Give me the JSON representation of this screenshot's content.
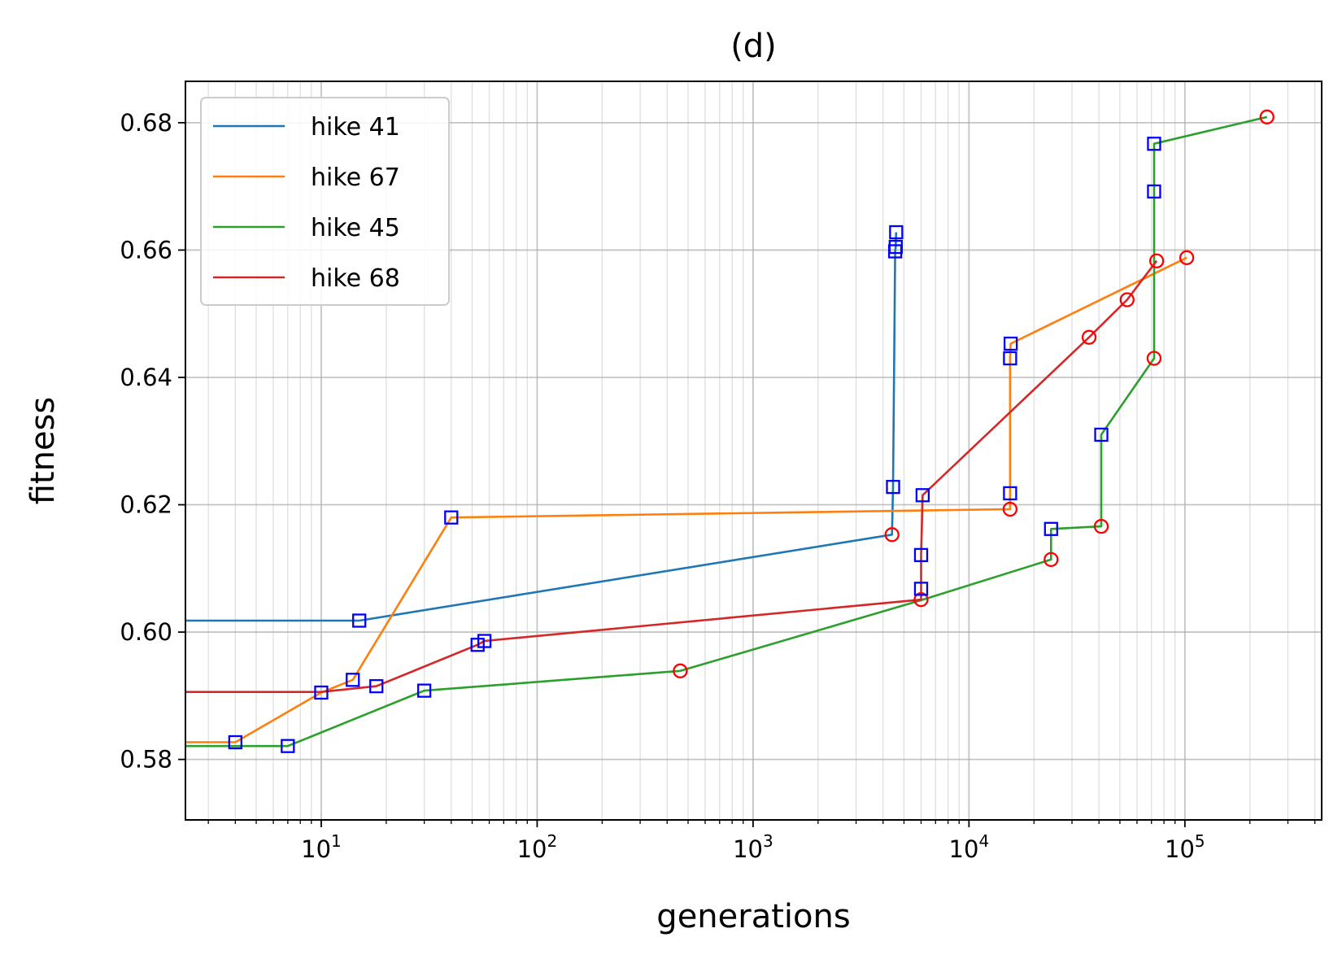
{
  "chart_data": {
    "type": "line",
    "title": "(d)",
    "xlabel": "generations",
    "ylabel": "fitness",
    "xscale": "log",
    "xlim": [
      2.35,
      430000
    ],
    "ylim": [
      0.5705,
      0.6865
    ],
    "x_ticks": [
      {
        "value": 10,
        "base": "10",
        "exp": "1"
      },
      {
        "value": 100,
        "base": "10",
        "exp": "2"
      },
      {
        "value": 1000,
        "base": "10",
        "exp": "3"
      },
      {
        "value": 10000,
        "base": "10",
        "exp": "4"
      },
      {
        "value": 100000,
        "base": "10",
        "exp": "5"
      }
    ],
    "y_ticks": [
      {
        "value": 0.58,
        "label": "0.58"
      },
      {
        "value": 0.6,
        "label": "0.60"
      },
      {
        "value": 0.62,
        "label": "0.62"
      },
      {
        "value": 0.64,
        "label": "0.64"
      },
      {
        "value": 0.66,
        "label": "0.66"
      },
      {
        "value": 0.68,
        "label": "0.68"
      }
    ],
    "grid": true,
    "minor_grid": true,
    "legend_position": "upper-left",
    "series": [
      {
        "name": "hike 41",
        "color": "#1f77b4",
        "points": [
          {
            "x": 2.35,
            "y": 0.6018,
            "m": ""
          },
          {
            "x": 15,
            "y": 0.6018,
            "m": "s"
          },
          {
            "x": 4400,
            "y": 0.6153,
            "m": "o"
          },
          {
            "x": 4450,
            "y": 0.6228,
            "m": "s"
          },
          {
            "x": 4550,
            "y": 0.6598,
            "m": "s"
          },
          {
            "x": 4580,
            "y": 0.6605,
            "m": "s"
          },
          {
            "x": 4600,
            "y": 0.6628,
            "m": "s"
          }
        ]
      },
      {
        "name": "hike 67",
        "color": "#ff7f0e",
        "points": [
          {
            "x": 2.35,
            "y": 0.5827,
            "m": ""
          },
          {
            "x": 4,
            "y": 0.5827,
            "m": "s"
          },
          {
            "x": 10,
            "y": 0.5905,
            "m": "s"
          },
          {
            "x": 14,
            "y": 0.5925,
            "m": "s"
          },
          {
            "x": 40,
            "y": 0.618,
            "m": "s"
          },
          {
            "x": 15500,
            "y": 0.6193,
            "m": "o"
          },
          {
            "x": 15500,
            "y": 0.6218,
            "m": "s"
          },
          {
            "x": 15500,
            "y": 0.643,
            "m": "s"
          },
          {
            "x": 15600,
            "y": 0.6453,
            "m": "s"
          },
          {
            "x": 102000,
            "y": 0.6588,
            "m": "o"
          }
        ]
      },
      {
        "name": "hike 45",
        "color": "#2ca02c",
        "points": [
          {
            "x": 2.35,
            "y": 0.5821,
            "m": ""
          },
          {
            "x": 7,
            "y": 0.5821,
            "m": "s"
          },
          {
            "x": 30,
            "y": 0.5908,
            "m": "s"
          },
          {
            "x": 460,
            "y": 0.5939,
            "m": "o"
          },
          {
            "x": 6000,
            "y": 0.605,
            "m": ""
          },
          {
            "x": 24000,
            "y": 0.6114,
            "m": "o"
          },
          {
            "x": 24000,
            "y": 0.6162,
            "m": "s"
          },
          {
            "x": 41000,
            "y": 0.6166,
            "m": "o"
          },
          {
            "x": 41000,
            "y": 0.631,
            "m": "s"
          },
          {
            "x": 72000,
            "y": 0.643,
            "m": "o"
          },
          {
            "x": 72000,
            "y": 0.6692,
            "m": "s"
          },
          {
            "x": 72000,
            "y": 0.6767,
            "m": "s"
          },
          {
            "x": 240000,
            "y": 0.6809,
            "m": "o"
          }
        ]
      },
      {
        "name": "hike 68",
        "color": "#d62728",
        "points": [
          {
            "x": 2.35,
            "y": 0.5906,
            "m": ""
          },
          {
            "x": 10,
            "y": 0.5906,
            "m": ""
          },
          {
            "x": 18,
            "y": 0.5915,
            "m": "s"
          },
          {
            "x": 53,
            "y": 0.598,
            "m": "s"
          },
          {
            "x": 57,
            "y": 0.5986,
            "m": "s"
          },
          {
            "x": 6000,
            "y": 0.6051,
            "m": "o"
          },
          {
            "x": 6000,
            "y": 0.6068,
            "m": "s"
          },
          {
            "x": 6000,
            "y": 0.6121,
            "m": "s"
          },
          {
            "x": 6100,
            "y": 0.6215,
            "m": "s"
          },
          {
            "x": 36000,
            "y": 0.6463,
            "m": "o"
          },
          {
            "x": 54000,
            "y": 0.6522,
            "m": "o"
          },
          {
            "x": 74000,
            "y": 0.6583,
            "m": "o"
          }
        ]
      }
    ]
  }
}
